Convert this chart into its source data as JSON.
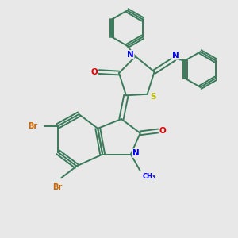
{
  "background_color": "#e8e8e8",
  "bond_color": "#3a7a5a",
  "atom_colors": {
    "N": "#0000ee",
    "O": "#dd0000",
    "S": "#bbbb00",
    "Br": "#cc6600",
    "C": "#3a7a5a"
  },
  "line_width": 1.4,
  "figsize": [
    3.0,
    3.0
  ],
  "dpi": 100
}
